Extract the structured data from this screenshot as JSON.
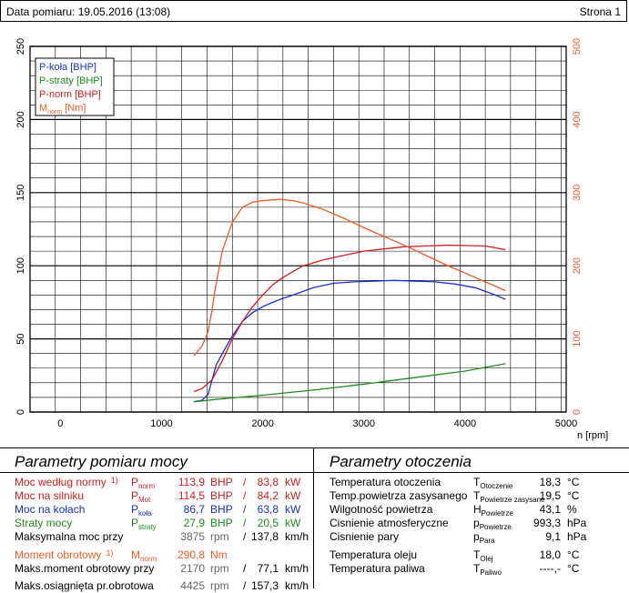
{
  "header": {
    "date_label": "Data pomiaru: 19.05.2016 (13:08)",
    "page_label": "Strona 1"
  },
  "colors": {
    "p_kola": "#1a2fd0",
    "p_straty": "#1f8a1f",
    "p_norm": "#d01f1f",
    "m_norm": "#f05a28",
    "grid": "#000000"
  },
  "chart_data": {
    "type": "line",
    "xlabel": "n [rpm]",
    "xlim": [
      -300,
      5000
    ],
    "ylim_left": [
      0,
      250
    ],
    "ylim_right": [
      0,
      500
    ],
    "x_ticks": [
      0,
      1000,
      2000,
      3000,
      4000,
      5000
    ],
    "y_ticks_left": [
      0,
      50,
      100,
      150,
      200,
      250
    ],
    "y_ticks_right": [
      0,
      100,
      200,
      300,
      400,
      500
    ],
    "legend_position": "top-left",
    "series": [
      {
        "name": "P-koła [BHP]",
        "axis": "left",
        "color": "#1a2fd0",
        "x": [
          1320,
          1400,
          1460,
          1500,
          1540,
          1600,
          1700,
          1800,
          1900,
          2000,
          2100,
          2170,
          2300,
          2500,
          2700,
          2900,
          3100,
          3300,
          3500,
          3700,
          3900,
          4100,
          4300,
          4400
        ],
        "y": [
          7,
          8,
          12,
          22,
          32,
          40,
          52,
          62,
          68,
          72,
          75,
          77,
          80,
          85,
          88,
          89,
          89.5,
          90,
          89.5,
          89,
          87.5,
          85,
          80,
          77
        ]
      },
      {
        "name": "P-straty [BHP]",
        "axis": "left",
        "color": "#1f8a1f",
        "x": [
          1320,
          1600,
          2000,
          2500,
          3000,
          3500,
          4000,
          4400
        ],
        "y": [
          7,
          9,
          11.5,
          15,
          19,
          23.5,
          28,
          33
        ]
      },
      {
        "name": "P-norm [BHP]",
        "axis": "left",
        "color": "#d01f1f",
        "x": [
          1320,
          1400,
          1500,
          1600,
          1700,
          1800,
          1900,
          2000,
          2100,
          2200,
          2300,
          2400,
          2600,
          2800,
          3000,
          3200,
          3400,
          3600,
          3800,
          3875,
          4000,
          4200,
          4400
        ],
        "y": [
          14,
          16,
          22,
          35,
          50,
          62,
          72,
          80,
          87,
          92,
          96,
          100,
          104,
          107,
          110,
          111.5,
          113,
          113.5,
          114,
          114,
          113.8,
          113.5,
          111
        ]
      },
      {
        "name": "Mnorm [Nm]",
        "axis": "right",
        "color": "#f05a28",
        "x": [
          1320,
          1400,
          1460,
          1500,
          1520,
          1560,
          1600,
          1700,
          1800,
          1900,
          2000,
          2100,
          2170,
          2300,
          2400,
          2600,
          2800,
          3000,
          3200,
          3400,
          3600,
          3800,
          4000,
          4200,
          4400
        ],
        "y": [
          77,
          90,
          110,
          140,
          160,
          190,
          220,
          260,
          280,
          287,
          289,
          290,
          290.8,
          289,
          286,
          277,
          265,
          252,
          240,
          228,
          215,
          202,
          190,
          178,
          166
        ]
      }
    ]
  },
  "legend": {
    "p_kola": "P-koła [BHP]",
    "p_straty": "P-straty [BHP]",
    "p_norm": "P-norm [BHP]",
    "m_norm_main": "M",
    "m_norm_sub": "norm",
    "m_norm_unit": " [Nm]"
  },
  "left_panel": {
    "title": "Parametry pomiaru mocy",
    "rows": [
      {
        "label": "Moc według normy",
        "ref": "1)",
        "sym": "P",
        "sub": "norm",
        "v1": "113,9",
        "u1": "BHP",
        "v2": "83,8",
        "u2": "kW",
        "color": "#d01f1f"
      },
      {
        "label": "Moc na silniku",
        "ref": "",
        "sym": "P",
        "sub": "Mot",
        "v1": "114,5",
        "u1": "BHP",
        "v2": "84,2",
        "u2": "kW",
        "color": "#d01f1f"
      },
      {
        "label": "Moc na kołach",
        "ref": "",
        "sym": "P",
        "sub": "koła",
        "v1": "86,7",
        "u1": "BHP",
        "v2": "63,8",
        "u2": "kW",
        "color": "#1a2fd0"
      },
      {
        "label": "Straty mocy",
        "ref": "",
        "sym": "P",
        "sub": "straty",
        "v1": "27,9",
        "u1": "BHP",
        "v2": "20,5",
        "u2": "kW",
        "color": "#1f8a1f"
      },
      {
        "label": "Maksymalna moc przy",
        "ref": "",
        "sym": "",
        "sub": "",
        "v1": "3875",
        "u1": "rpm",
        "v2": "137,8",
        "u2": "km/h",
        "color": "#000000"
      },
      {
        "label": "Moment obrotowy",
        "ref": "1)",
        "sym": "M",
        "sub": "norm",
        "v1": "290,8",
        "u1": "Nm",
        "v2": "",
        "u2": "",
        "color": "#f05a28"
      },
      {
        "label": "Maks.moment obrotowy przy",
        "ref": "",
        "sym": "",
        "sub": "",
        "v1": "2170",
        "u1": "rpm",
        "v2": "77,1",
        "u2": "km/h",
        "color": "#000000"
      },
      {
        "label": "Maks.osiągnięta pr.obrotowa",
        "ref": "",
        "sym": "",
        "sub": "",
        "v1": "4425",
        "u1": "rpm",
        "v2": "157,3",
        "u2": "km/h",
        "color": "#000000"
      }
    ]
  },
  "right_panel": {
    "title": "Parametry otoczenia",
    "rows": [
      {
        "label": "Temperatura otoczenia",
        "sym": "T",
        "sub": "Otoczenie",
        "value": "18,3",
        "unit": "°C"
      },
      {
        "label": "Temp.powietrza zasysanego",
        "sym": "T",
        "sub": "Powietrze zasysane",
        "value": "19,5",
        "unit": "°C"
      },
      {
        "label": "Wilgotność powietrza",
        "sym": "H",
        "sub": "Powietrze",
        "value": "43,1",
        "unit": "%"
      },
      {
        "label": "Cisnienie atmosferyczne",
        "sym": "p",
        "sub": "Powietrze",
        "value": "993,3",
        "unit": "hPa"
      },
      {
        "label": "Cisnienie pary",
        "sym": "p",
        "sub": "Para",
        "value": "9,1",
        "unit": "hPa"
      },
      {
        "label": "Temperatura oleju",
        "sym": "T",
        "sub": "Olej",
        "value": "18,0",
        "unit": "°C"
      },
      {
        "label": "Temperatura paliwa",
        "sym": "T",
        "sub": "Paliwo",
        "value": "----,-",
        "unit": "°C"
      }
    ]
  }
}
